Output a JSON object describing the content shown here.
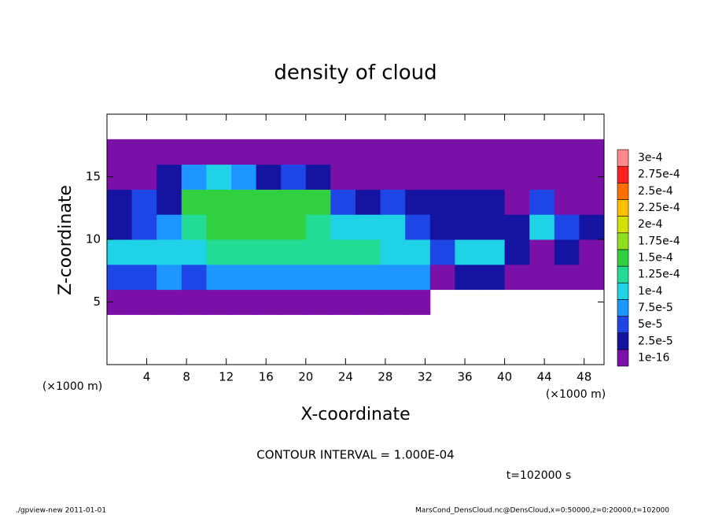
{
  "chart_data": {
    "type": "heatmap",
    "title": "density of cloud",
    "x_label": "X-coordinate",
    "y_label": "Z-coordinate",
    "x_unit": "(×1000 m)",
    "y_unit": "(×1000 m)",
    "annotation": "CONTOUR INTERVAL = 1.000E-04",
    "time_label": "t=102000 s",
    "footer_left": "./gpview-new  2011-01-01",
    "footer_right": "MarsCond_DensCloud.nc@DensCloud,x=0:50000,z=0:20000,t=102000",
    "xlim": [
      0,
      50
    ],
    "ylim": [
      0,
      20
    ],
    "xticks": [
      4,
      8,
      12,
      16,
      20,
      24,
      28,
      32,
      36,
      40,
      44,
      48
    ],
    "yticks": [
      5,
      10,
      15
    ],
    "cell_width": 2.5,
    "cell_height": 2,
    "x": [
      1.25,
      3.75,
      6.25,
      8.75,
      11.25,
      13.75,
      16.25,
      18.75,
      21.25,
      23.75,
      26.25,
      28.75,
      31.25,
      33.75,
      36.25,
      38.75,
      41.25,
      43.75,
      46.25,
      48.75
    ],
    "y": [
      1,
      3,
      5,
      7,
      9,
      11,
      13,
      15,
      17,
      19
    ],
    "values": [
      [
        0,
        0,
        0,
        0,
        0,
        0,
        0,
        0,
        0,
        0,
        0,
        0,
        0,
        0,
        0,
        0,
        0,
        0,
        0,
        0
      ],
      [
        0,
        0,
        0,
        0,
        0,
        0,
        0,
        0,
        0,
        0,
        0,
        0,
        0,
        0,
        0,
        0,
        0,
        0,
        0,
        0
      ],
      [
        1e-06,
        1e-06,
        1e-06,
        1e-06,
        1e-06,
        1e-06,
        1e-06,
        1e-06,
        1e-06,
        1e-06,
        1e-06,
        1e-06,
        1e-06,
        0,
        0,
        0,
        0,
        0,
        0,
        0
      ],
      [
        6e-05,
        7e-05,
        8e-05,
        7e-05,
        8e-05,
        9e-05,
        9e-05,
        9e-05,
        9e-05,
        9e-05,
        9e-05,
        9e-05,
        8e-05,
        2e-05,
        3e-05,
        4e-05,
        2e-05,
        1e-05,
        2e-05,
        1e-05
      ],
      [
        0.00011,
        0.00012,
        0.00011,
        0.00012,
        0.00013,
        0.00013,
        0.00013,
        0.00013,
        0.00013,
        0.00013,
        0.00013,
        0.00012,
        0.0001,
        5e-05,
        0.00012,
        0.00012,
        3e-05,
        2e-05,
        3e-05,
        2e-05
      ],
      [
        4e-05,
        5e-05,
        8e-05,
        0.00014,
        0.00015,
        0.00016,
        0.00016,
        0.00015,
        0.00014,
        0.00012,
        0.00011,
        0.00011,
        5e-05,
        3e-05,
        4e-05,
        3e-05,
        4e-05,
        0.0001,
        6e-05,
        3e-05
      ],
      [
        3e-05,
        6e-05,
        4e-05,
        0.00015,
        0.00016,
        0.00017,
        0.00015,
        0.00016,
        0.00015,
        6e-05,
        4e-05,
        5e-05,
        3e-05,
        3e-05,
        4e-05,
        3e-05,
        2e-05,
        5e-05,
        2e-05,
        2e-05
      ],
      [
        2e-05,
        2e-05,
        3e-05,
        8e-05,
        0.0001,
        8e-05,
        3e-05,
        6e-05,
        4e-05,
        2e-05,
        2e-05,
        2e-05,
        2e-05,
        2e-05,
        1.5e-05,
        1.5e-05,
        1e-05,
        1e-05,
        1e-05,
        1e-05
      ],
      [
        1e-06,
        1e-06,
        1e-06,
        1e-06,
        1e-06,
        1e-06,
        1e-06,
        1e-06,
        1e-06,
        1e-06,
        1e-06,
        1e-06,
        1e-06,
        1e-06,
        1e-06,
        1e-06,
        1e-06,
        1e-06,
        1e-06,
        1e-06
      ],
      [
        0,
        0,
        0,
        0,
        0,
        0,
        0,
        0,
        0,
        0,
        0,
        0,
        0,
        0,
        0,
        0,
        0,
        0,
        0,
        0
      ]
    ],
    "levels": [
      {
        "value": 1e-16,
        "label": "1e-16",
        "color": "#7a10a8"
      },
      {
        "value": 2.5e-05,
        "label": "2.5e-5",
        "color": "#1414a0"
      },
      {
        "value": 5e-05,
        "label": "5e-5",
        "color": "#1e46e6"
      },
      {
        "value": 7.5e-05,
        "label": "7.5e-5",
        "color": "#1e96ff"
      },
      {
        "value": 0.0001,
        "label": "1e-4",
        "color": "#20d2e6"
      },
      {
        "value": 0.000125,
        "label": "1.25e-4",
        "color": "#22dc96"
      },
      {
        "value": 0.00015,
        "label": "1.5e-4",
        "color": "#30d040"
      },
      {
        "value": 0.000175,
        "label": "1.75e-4",
        "color": "#90e020"
      },
      {
        "value": 0.0002,
        "label": "2e-4",
        "color": "#d4e000"
      },
      {
        "value": 0.000225,
        "label": "2.25e-4",
        "color": "#ffc000"
      },
      {
        "value": 0.00025,
        "label": "2.5e-4",
        "color": "#ff7000"
      },
      {
        "value": 0.000275,
        "label": "2.75e-4",
        "color": "#ff2020"
      },
      {
        "value": 0.0003,
        "label": "3e-4",
        "color": "#ff8a8a"
      }
    ]
  }
}
